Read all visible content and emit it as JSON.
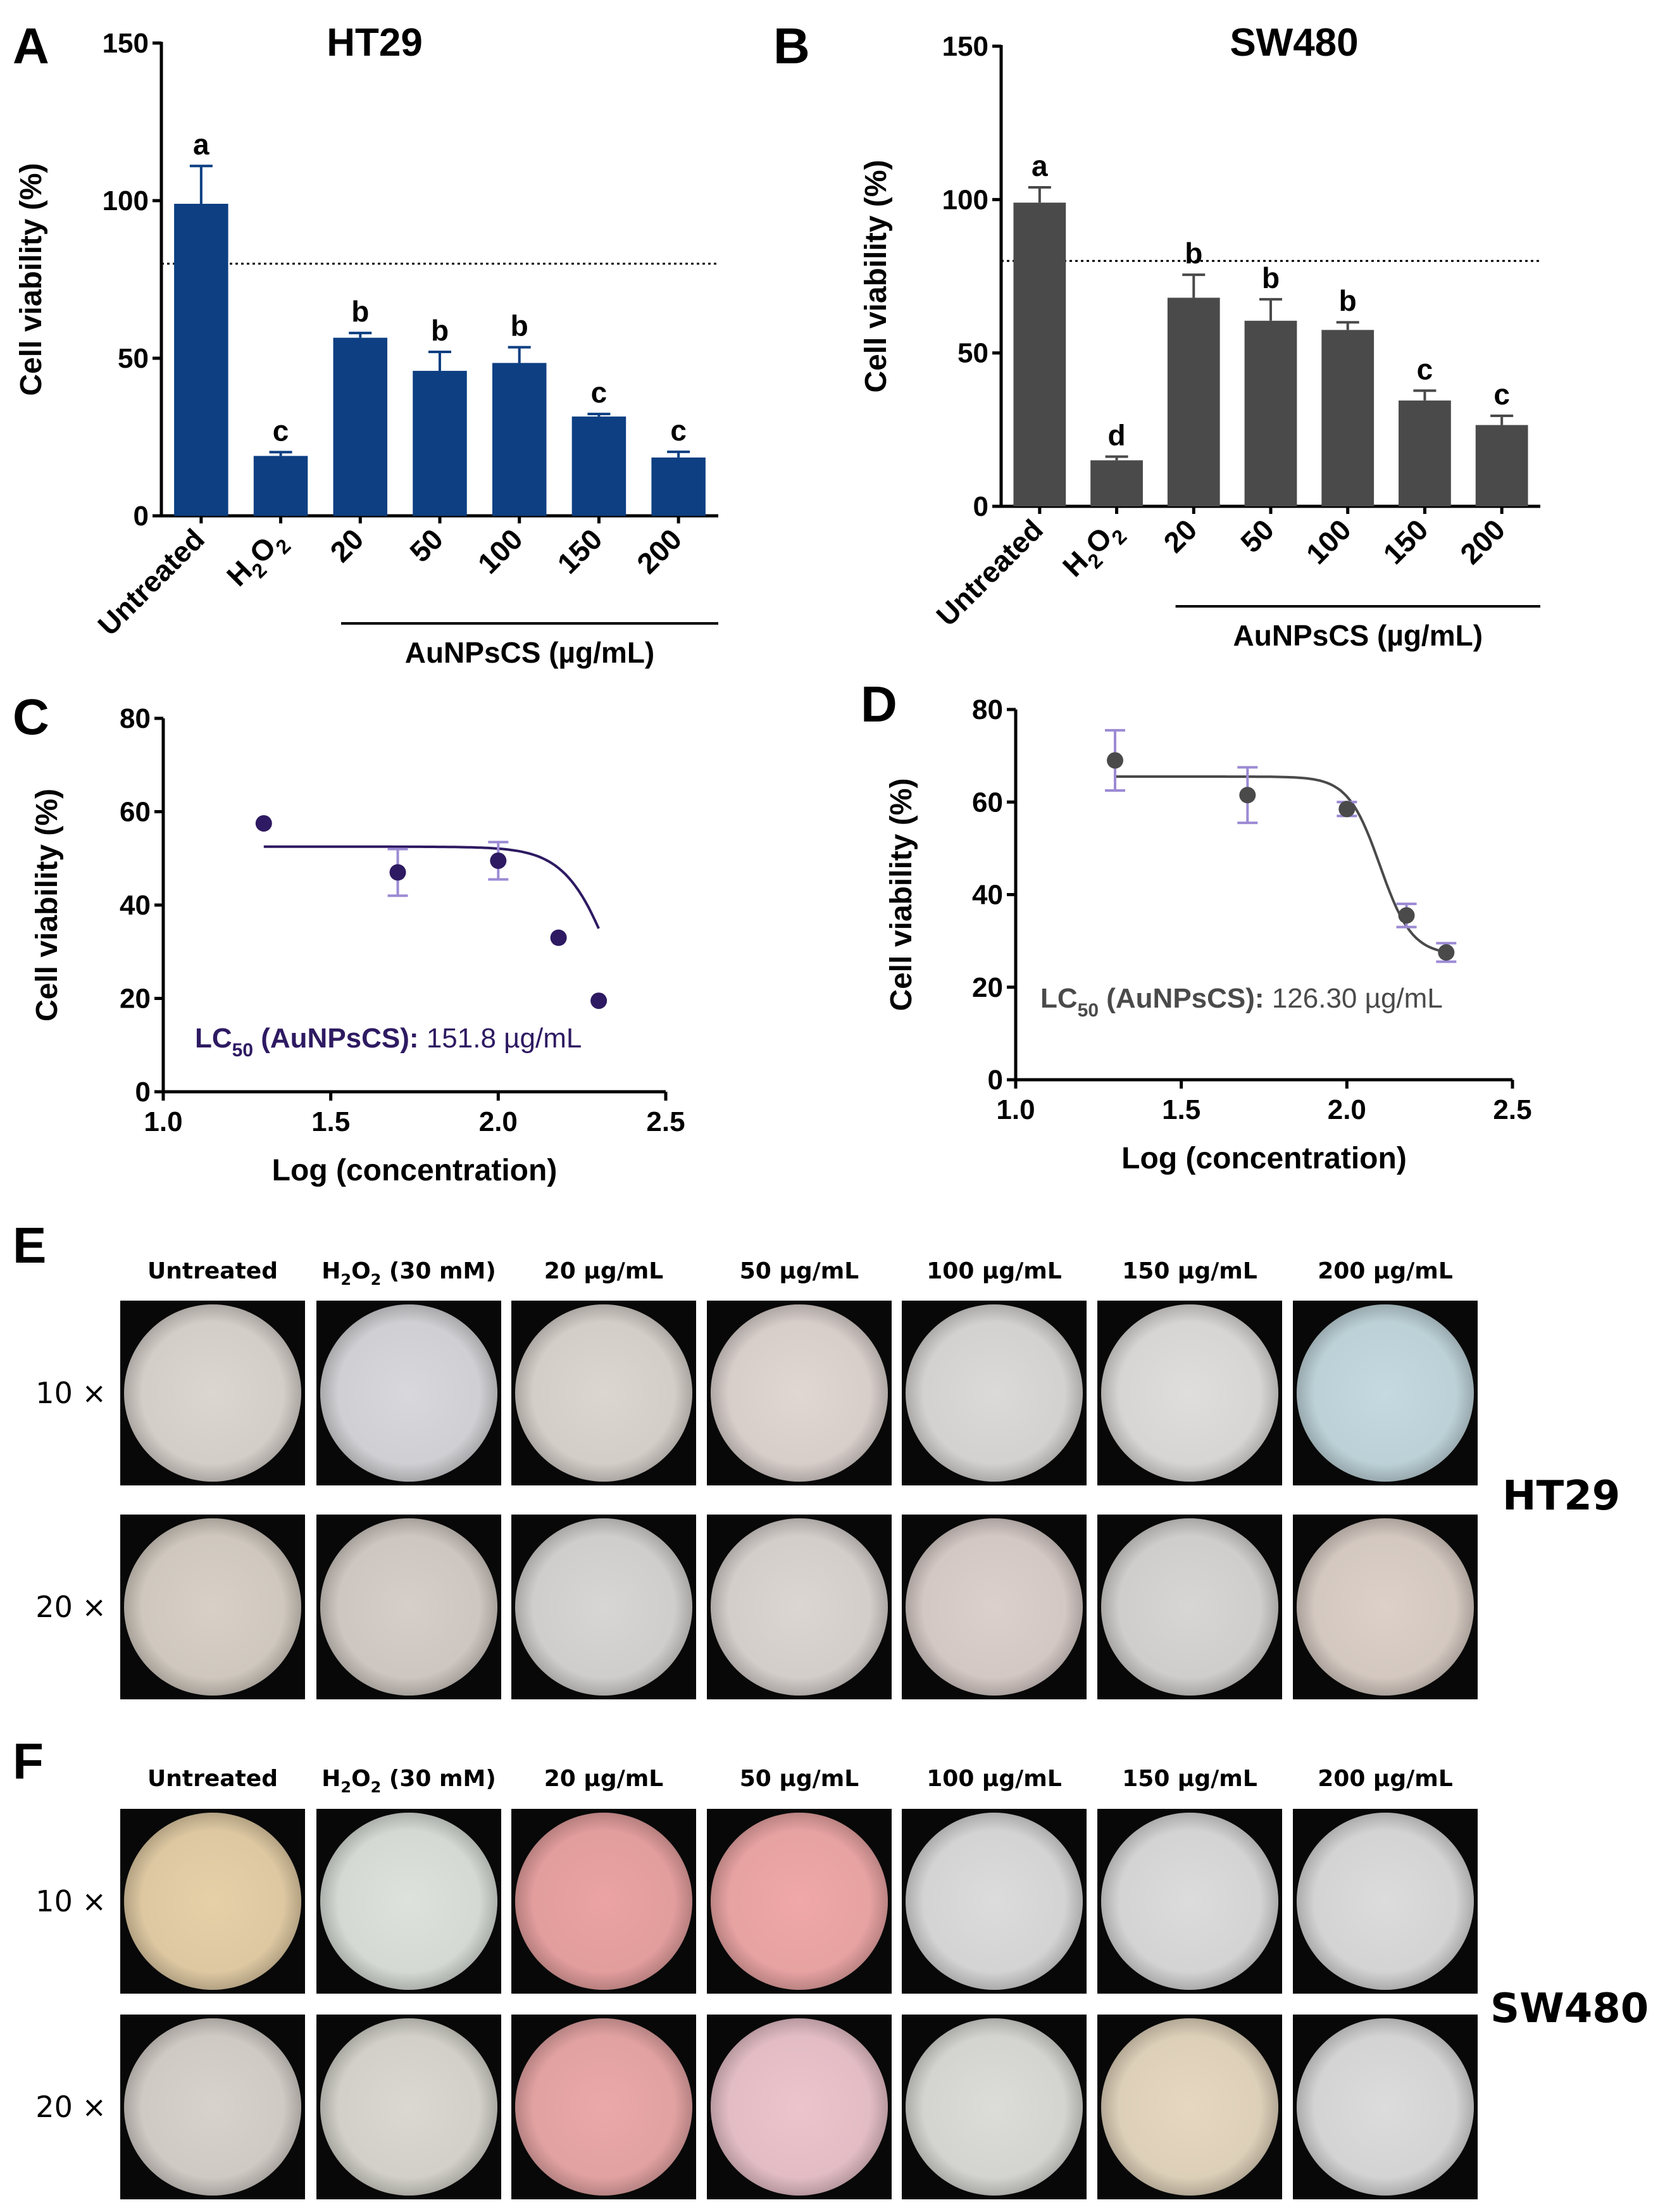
{
  "panels": {
    "A": "A",
    "B": "B",
    "C": "C",
    "D": "D",
    "E": "E",
    "F": "F"
  },
  "chart_data": [
    {
      "id": "A",
      "type": "bar",
      "title": "HT29",
      "ylabel": "Cell viability (%)",
      "ylim": [
        0,
        150
      ],
      "yticks": [
        0,
        50,
        100,
        150
      ],
      "categories": [
        "Untreated",
        "H2O2",
        "20",
        "50",
        "100",
        "150",
        "200"
      ],
      "values": [
        99,
        19,
        56.5,
        46,
        48.5,
        31.5,
        18.5
      ],
      "errors": [
        12,
        1.2,
        1.5,
        6,
        5,
        0.8,
        1.8
      ],
      "significance": [
        "a",
        "c",
        "b",
        "b",
        "b",
        "c",
        "c"
      ],
      "reference_line": 80,
      "group_label": "AuNPsCS (µg/mL)",
      "bar_color": "#0d3f82"
    },
    {
      "id": "B",
      "type": "bar",
      "title": "SW480",
      "ylabel": "Cell viability (%)",
      "ylim": [
        0,
        150
      ],
      "yticks": [
        0,
        50,
        100,
        150
      ],
      "categories": [
        "Untreated",
        "H2O2",
        "20",
        "50",
        "100",
        "150",
        "200"
      ],
      "values": [
        99,
        15,
        68,
        60.5,
        57.5,
        34.5,
        26.5
      ],
      "errors": [
        5,
        1.2,
        7.5,
        7,
        2.5,
        3.2,
        3
      ],
      "significance": [
        "a",
        "d",
        "b",
        "b",
        "b",
        "c",
        "c"
      ],
      "reference_line": 80,
      "group_label": "AuNPsCS (µg/mL)",
      "bar_color": "#4a4a4a"
    },
    {
      "id": "C",
      "type": "scatter",
      "xlabel": "Log (concentration)",
      "ylabel": "Cell viability (%)",
      "xlim": [
        1.0,
        2.5
      ],
      "ylim": [
        0,
        80
      ],
      "xticks": [
        "1.0",
        "1.5",
        "2.0",
        "2.5"
      ],
      "yticks": [
        0,
        20,
        40,
        60,
        80
      ],
      "x": [
        1.3,
        1.7,
        2.0,
        2.18,
        2.3
      ],
      "y": [
        57.5,
        47,
        49.5,
        33,
        19.5
      ],
      "errors": [
        0,
        5,
        4,
        0,
        0
      ],
      "fit": {
        "top": 52.5,
        "bottom": 0,
        "logec50": 2.35,
        "hill": 6
      },
      "annotation_label": "LC",
      "annotation_sub": "50",
      "annotation_compound": "(AuNPsCS):",
      "annotation_value": "151.8 µg/mL",
      "color": "#2e1a62"
    },
    {
      "id": "D",
      "type": "scatter",
      "xlabel": "Log (concentration)",
      "ylabel": "Cell viability (%)",
      "xlim": [
        1.0,
        2.5
      ],
      "ylim": [
        0,
        80
      ],
      "xticks": [
        "1.0",
        "1.5",
        "2.0",
        "2.5"
      ],
      "yticks": [
        0,
        20,
        40,
        60,
        80
      ],
      "x": [
        1.3,
        1.7,
        2.0,
        2.18,
        2.3
      ],
      "y": [
        69,
        61.5,
        58.5,
        35.5,
        27.5
      ],
      "errors": [
        6.5,
        6,
        1.5,
        2.5,
        2
      ],
      "fit": {
        "top": 65.5,
        "bottom": 27,
        "logec50": 2.1,
        "hill": 9
      },
      "annotation_label": "LC",
      "annotation_sub": "50",
      "annotation_compound": "(AuNPsCS):",
      "annotation_value": "126.30 µg/mL",
      "color": "#4a4a4a"
    }
  ],
  "micrographs": {
    "E": {
      "columns": [
        "Untreated",
        "H2O2 (30 mM)",
        "20 µg/mL",
        "50 µg/mL",
        "100 µg/mL",
        "150 µg/mL",
        "200 µg/mL"
      ],
      "rows": [
        "10 ×",
        "20 ×"
      ],
      "cell_line": "HT29",
      "tints": [
        [
          "#dcd6d0",
          "#d8d8dc",
          "#dcd6d0",
          "#e0d6d2",
          "#dcdad8",
          "#e0dedc",
          "#c4dae0"
        ],
        [
          "#d8d0c6",
          "#d6cec8",
          "#d8d6d4",
          "#dcd6d2",
          "#dcd0cc",
          "#d8d6d4",
          "#dcd0c8"
        ]
      ]
    },
    "F": {
      "columns": [
        "Untreated",
        "H2O2 (30 mM)",
        "20 µg/mL",
        "50 µg/mL",
        "100 µg/mL",
        "150 µg/mL",
        "200 µg/mL"
      ],
      "rows": [
        "10 ×",
        "20 ×"
      ],
      "cell_line": "SW480",
      "tints": [
        [
          "#e6d0a8",
          "#dde2dc",
          "#eba3a3",
          "#f0a8a8",
          "#dcdcdc",
          "#dcdcdc",
          "#dcdcdc"
        ],
        [
          "#d8d2cc",
          "#dad8d0",
          "#eba8a8",
          "#ecc4cc",
          "#dcdcd8",
          "#e6d8c0",
          "#dcdcdc"
        ]
      ]
    }
  }
}
